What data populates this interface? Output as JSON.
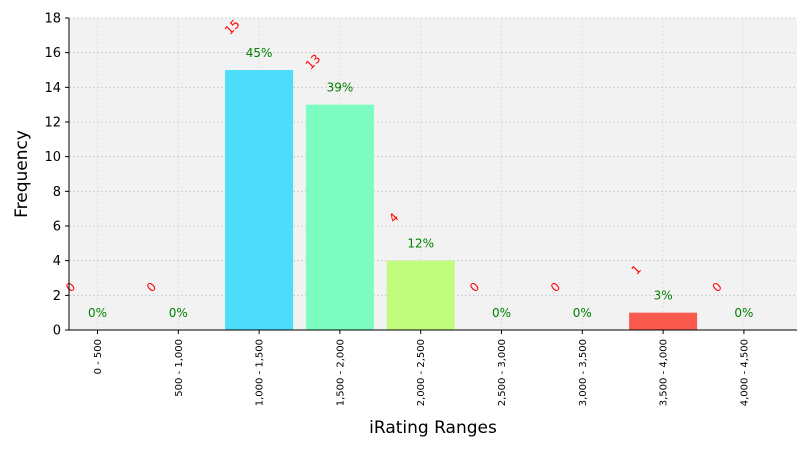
{
  "chart_data": {
    "type": "bar",
    "title": "",
    "xlabel": "iRating Ranges",
    "ylabel": "Frequency",
    "categories": [
      "0 - 500",
      "500 - 1,000",
      "1,000 - 1,500",
      "1,500 - 2,000",
      "2,000 - 2,500",
      "2,500 - 3,000",
      "3,000 - 3,500",
      "3,500 - 4,000",
      "4,000 - 4,500"
    ],
    "values": [
      0,
      0,
      15,
      13,
      4,
      0,
      0,
      1,
      0
    ],
    "count_labels": [
      "0",
      "0",
      "15",
      "13",
      "4",
      "0",
      "0",
      "1",
      "0"
    ],
    "percent_labels": [
      "0%",
      "0%",
      "45%",
      "39%",
      "12%",
      "0%",
      "0%",
      "3%",
      "0%"
    ],
    "bar_colors": [
      "#4ddcfa",
      "#4ddcfa",
      "#4ddcfa",
      "#7dfcc2",
      "#c2fc7d",
      "#f5a05a",
      "#f5a05a",
      "#fa5a4d",
      "#fa5a4d"
    ],
    "ylim": [
      0,
      18
    ],
    "yticks": [
      0,
      2,
      4,
      6,
      8,
      10,
      12,
      14,
      16,
      18
    ],
    "grid": true,
    "count_label_color": "#ff0000",
    "percent_label_color": "#008000",
    "plot_background": "#f2f2f2"
  }
}
